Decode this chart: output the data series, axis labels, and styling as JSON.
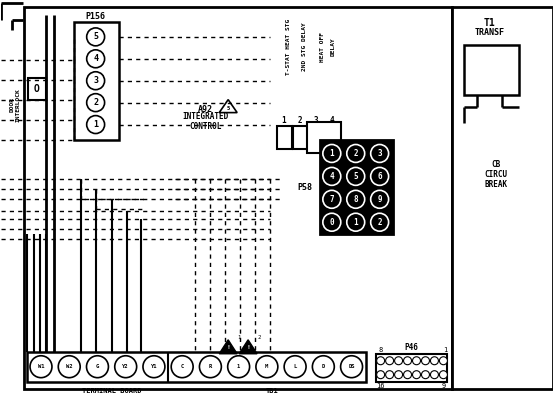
{
  "bg_color": "#ffffff",
  "line_color": "#000000",
  "fig_width": 5.54,
  "fig_height": 3.95,
  "p156_pins": [
    "5",
    "4",
    "3",
    "2",
    "1"
  ],
  "p58_pins": [
    [
      "3",
      "2",
      "1"
    ],
    [
      "6",
      "5",
      "4"
    ],
    [
      "9",
      "8",
      "7"
    ],
    [
      "2",
      "1",
      "0"
    ]
  ],
  "tb1_pins": [
    "W1",
    "W2",
    "G",
    "Y2",
    "Y1",
    "C",
    "R",
    "1",
    "M",
    "L",
    "D",
    "DS"
  ]
}
